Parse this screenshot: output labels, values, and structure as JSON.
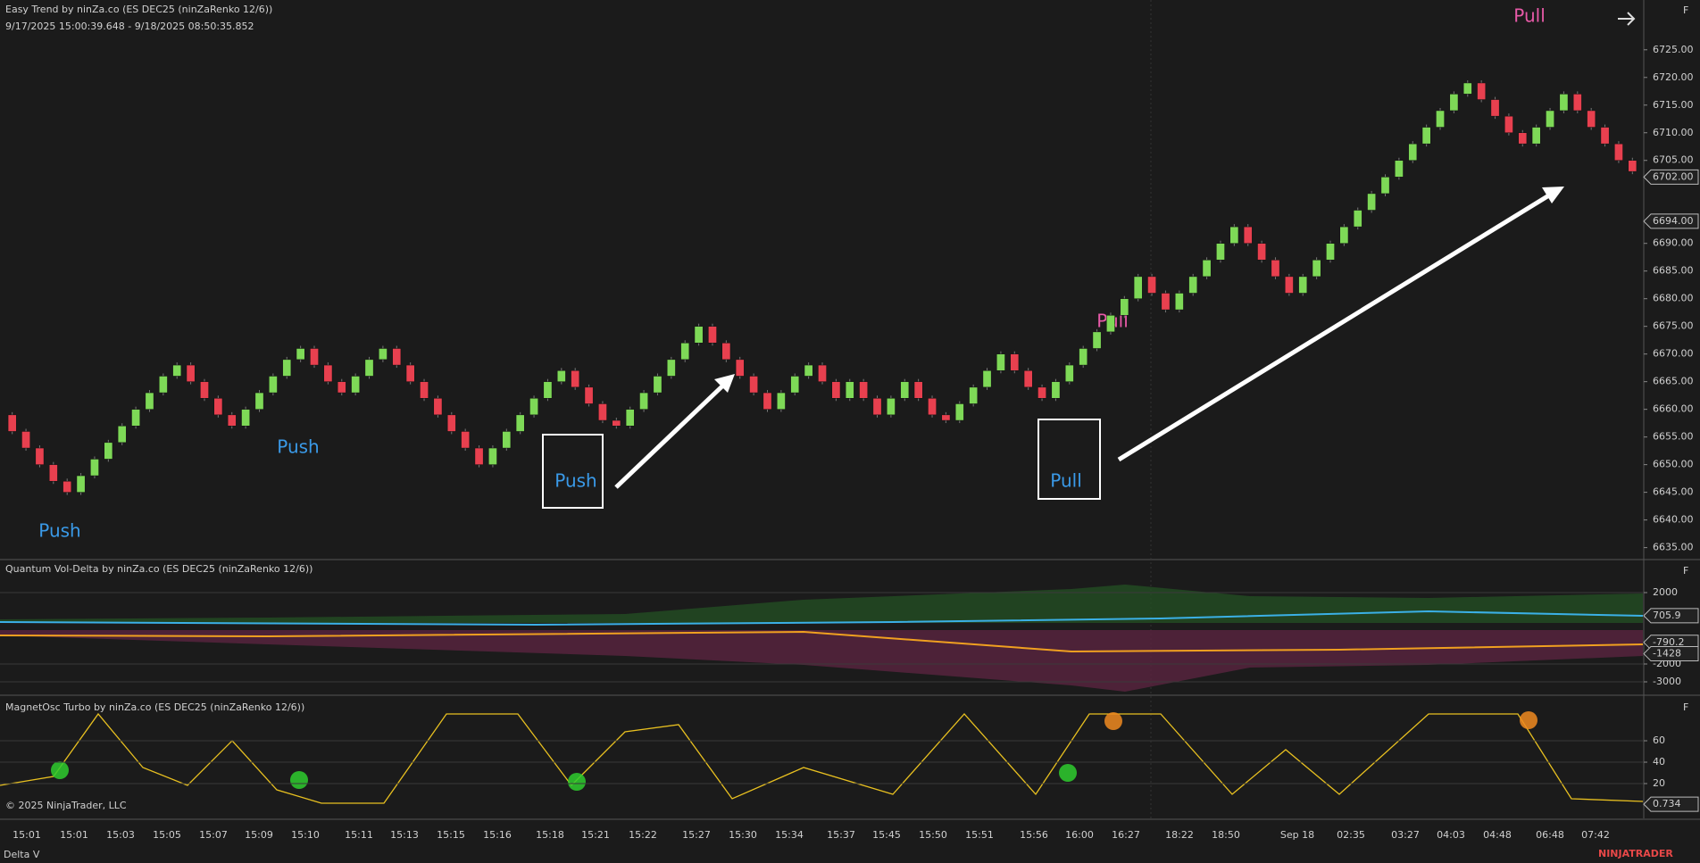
{
  "header": {
    "title": "Easy Trend by ninZa.co (ES DEC25 (ninZaRenko 12/6))",
    "range": "9/17/2025 15:00:39.648 - 9/18/2025 08:50:35.852"
  },
  "price_panel": {
    "ylim": [
      6633,
      6734
    ],
    "yticks": [
      {
        "value": 6635,
        "label": "6635.00"
      },
      {
        "value": 6640,
        "label": "6640.00"
      },
      {
        "value": 6645,
        "label": "6645.00"
      },
      {
        "value": 6650,
        "label": "6650.00"
      },
      {
        "value": 6655,
        "label": "6655.00"
      },
      {
        "value": 6660,
        "label": "6660.00"
      },
      {
        "value": 6665,
        "label": "6665.00"
      },
      {
        "value": 6670,
        "label": "6670.00"
      },
      {
        "value": 6675,
        "label": "6675.00"
      },
      {
        "value": 6680,
        "label": "6680.00"
      },
      {
        "value": 6685,
        "label": "6685.00"
      },
      {
        "value": 6690,
        "label": "6690.00"
      },
      {
        "value": 6705,
        "label": "6705.00"
      },
      {
        "value": 6710,
        "label": "6710.00"
      },
      {
        "value": 6715,
        "label": "6715.00"
      },
      {
        "value": 6720,
        "label": "6720.00"
      },
      {
        "value": 6725,
        "label": "6725.00"
      }
    ],
    "tags": [
      {
        "value": 6702,
        "label": "6702.00"
      },
      {
        "value": 6694,
        "label": "6694.00"
      }
    ],
    "bricks": [
      6656,
      6653,
      6650,
      6647,
      6645,
      6648,
      6651,
      6654,
      6657,
      6660,
      6663,
      6666,
      6668,
      6665,
      6662,
      6659,
      6657,
      6660,
      6663,
      6666,
      6669,
      6671,
      6668,
      6665,
      6663,
      6666,
      6669,
      6671,
      6668,
      6665,
      6662,
      6659,
      6656,
      6653,
      6650,
      6653,
      6656,
      6659,
      6662,
      6665,
      6667,
      6664,
      6661,
      6658,
      6657,
      6660,
      6663,
      6666,
      6669,
      6672,
      6675,
      6672,
      6669,
      6666,
      6663,
      6660,
      6663,
      6666,
      6668,
      6665,
      6662,
      6665,
      6662,
      6659,
      6662,
      6665,
      6662,
      6659,
      6658,
      6661,
      6664,
      6667,
      6670,
      6667,
      6664,
      6662,
      6665,
      6668,
      6671,
      6674,
      6677,
      6680,
      6684,
      6681,
      6678,
      6681,
      6684,
      6687,
      6690,
      6693,
      6690,
      6687,
      6684,
      6681,
      6684,
      6687,
      6690,
      6693,
      6696,
      6699,
      6702,
      6705,
      6708,
      6711,
      6714,
      6717,
      6719,
      6716,
      6713,
      6710,
      6708,
      6711,
      6714,
      6717,
      6714,
      6711,
      6708,
      6705,
      6703
    ],
    "annotations": [
      "Pull",
      "Pull",
      "Push",
      "Push",
      "Push",
      "Pull"
    ]
  },
  "delta_panel": {
    "title": "Quantum Vol-Delta by ninZa.co (ES DEC25 (ninZaRenko 12/6))",
    "ylim": [
      -3700,
      3800
    ],
    "yticks": [
      2000,
      -2000,
      -3000
    ],
    "tags": [
      705.9,
      -790.2,
      -1428
    ]
  },
  "osc_panel": {
    "title": "MagnetOsc Turbo by ninZa.co (ES DEC25 (ninZaRenko 12/6))",
    "ylim": [
      -12.5,
      101.7
    ],
    "yticks": [
      20,
      40,
      60
    ],
    "tags": [
      0.734
    ]
  },
  "time_axis": [
    "15:01",
    "15:01",
    "15:03",
    "15:05",
    "15:07",
    "15:09",
    "15:10",
    "15:11",
    "15:13",
    "15:15",
    "15:16",
    "15:18",
    "15:21",
    "15:22",
    "15:27",
    "15:30",
    "15:34",
    "15:37",
    "15:45",
    "15:50",
    "15:51",
    "15:56",
    "16:00",
    "16:27",
    "18:22",
    "18:50",
    "Sep 18",
    "02:35",
    "03:27",
    "04:03",
    "04:48",
    "06:48",
    "07:42"
  ],
  "footer": {
    "copyright": "© 2025 NinjaTrader, LLC",
    "tab": "Delta V",
    "logo": "NINJATRADER",
    "panel_button": "F"
  }
}
